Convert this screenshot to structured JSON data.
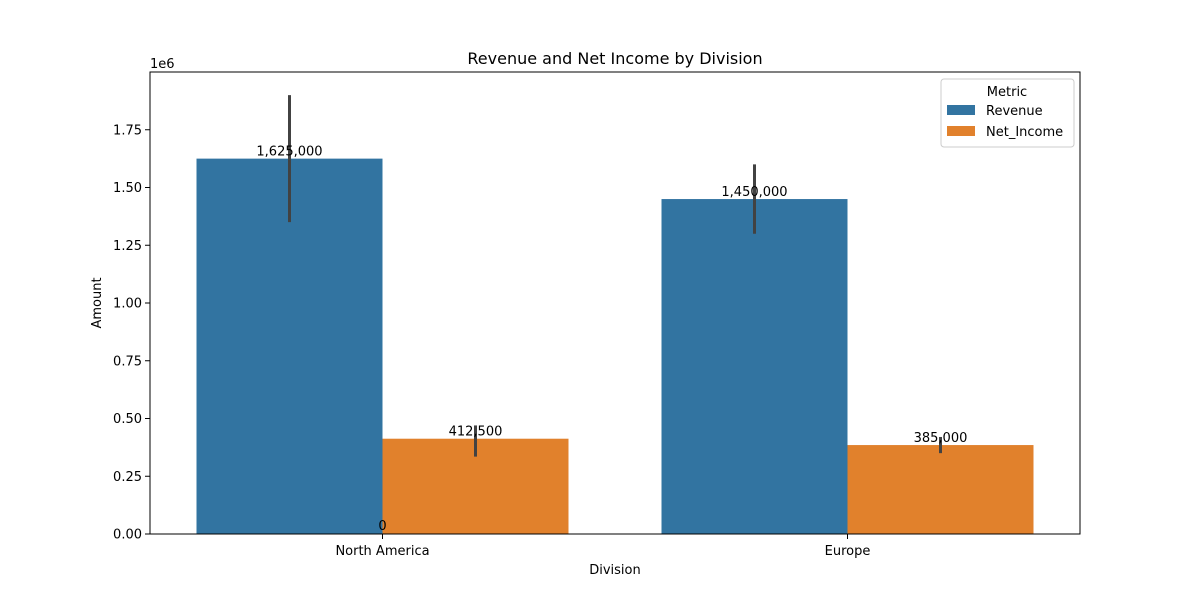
{
  "chart_data": {
    "type": "bar",
    "title": "Revenue and Net Income by Division",
    "xlabel": "Division",
    "ylabel": "Amount",
    "y_scale_label": "1e6",
    "categories": [
      "North America",
      "Europe"
    ],
    "series": [
      {
        "name": "Revenue",
        "color": "#3274a1",
        "values": [
          1625000,
          1450000
        ],
        "error_low": [
          1350000,
          1300000
        ],
        "error_high": [
          1900000,
          1600000
        ],
        "labels": [
          "1,625,000",
          "1,450,000"
        ]
      },
      {
        "name": "Net_Income",
        "color": "#e1812c",
        "values": [
          412500,
          385000
        ],
        "error_low": [
          335000,
          350000
        ],
        "error_high": [
          470000,
          420000
        ],
        "labels": [
          "412,500",
          "385,000"
        ]
      }
    ],
    "extra_label": "0",
    "ylim": [
      0,
      2000000
    ],
    "yticks": [
      0,
      250000,
      500000,
      750000,
      1000000,
      1250000,
      1500000,
      1750000
    ],
    "ytick_labels": [
      "0.00",
      "0.25",
      "0.50",
      "0.75",
      "1.00",
      "1.25",
      "1.50",
      "1.75"
    ],
    "legend": {
      "title": "Metric",
      "position": "top-right"
    },
    "grid": false
  }
}
